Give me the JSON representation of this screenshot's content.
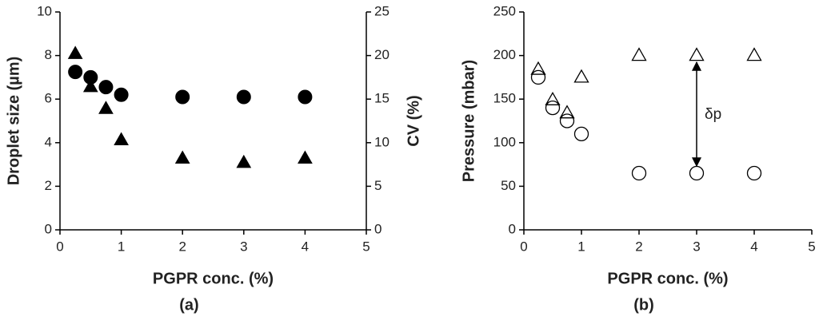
{
  "chart_data": [
    {
      "type": "scatter",
      "caption": "(a)",
      "xlabel": "PGPR conc. (%)",
      "ylabel": "Droplet size (µm)",
      "y2label": "CV (%)",
      "x": [
        0.25,
        0.5,
        0.75,
        1,
        2,
        3,
        4
      ],
      "series": [
        {
          "marker": "circle",
          "filled": true,
          "color": "#000000",
          "values": [
            7.25,
            7.0,
            6.55,
            6.2,
            6.1,
            6.1,
            6.1
          ]
        },
        {
          "marker": "triangle",
          "filled": true,
          "color": "#000000",
          "axis": "y2",
          "values": [
            20.2,
            16.4,
            13.9,
            10.3,
            8.2,
            7.7,
            8.2
          ]
        }
      ],
      "xlim": [
        0,
        5
      ],
      "xticks": [
        0,
        1,
        2,
        3,
        4,
        5
      ],
      "ylim": [
        0,
        10
      ],
      "yticks": [
        0,
        2,
        4,
        6,
        8,
        10
      ],
      "y2lim": [
        0,
        25
      ],
      "y2ticks": [
        0,
        5,
        10,
        15,
        20,
        25
      ]
    },
    {
      "type": "scatter",
      "caption": "(b)",
      "xlabel": "PGPR conc. (%)",
      "ylabel": "Pressure (mbar)",
      "annotation": "δp",
      "x": [
        0.25,
        0.5,
        0.75,
        1,
        2,
        3,
        4
      ],
      "series": [
        {
          "marker": "triangle",
          "filled": false,
          "color": "#000000",
          "values": [
            184,
            149,
            134,
            175,
            200,
            200,
            200
          ]
        },
        {
          "marker": "circle",
          "filled": false,
          "color": "#000000",
          "values": [
            175,
            140,
            125,
            110,
            65,
            65,
            65
          ]
        }
      ],
      "xlim": [
        0,
        5
      ],
      "xticks": [
        0,
        1,
        2,
        3,
        4,
        5
      ],
      "ylim": [
        0,
        250
      ],
      "yticks": [
        0,
        50,
        100,
        150,
        200,
        250
      ]
    }
  ]
}
